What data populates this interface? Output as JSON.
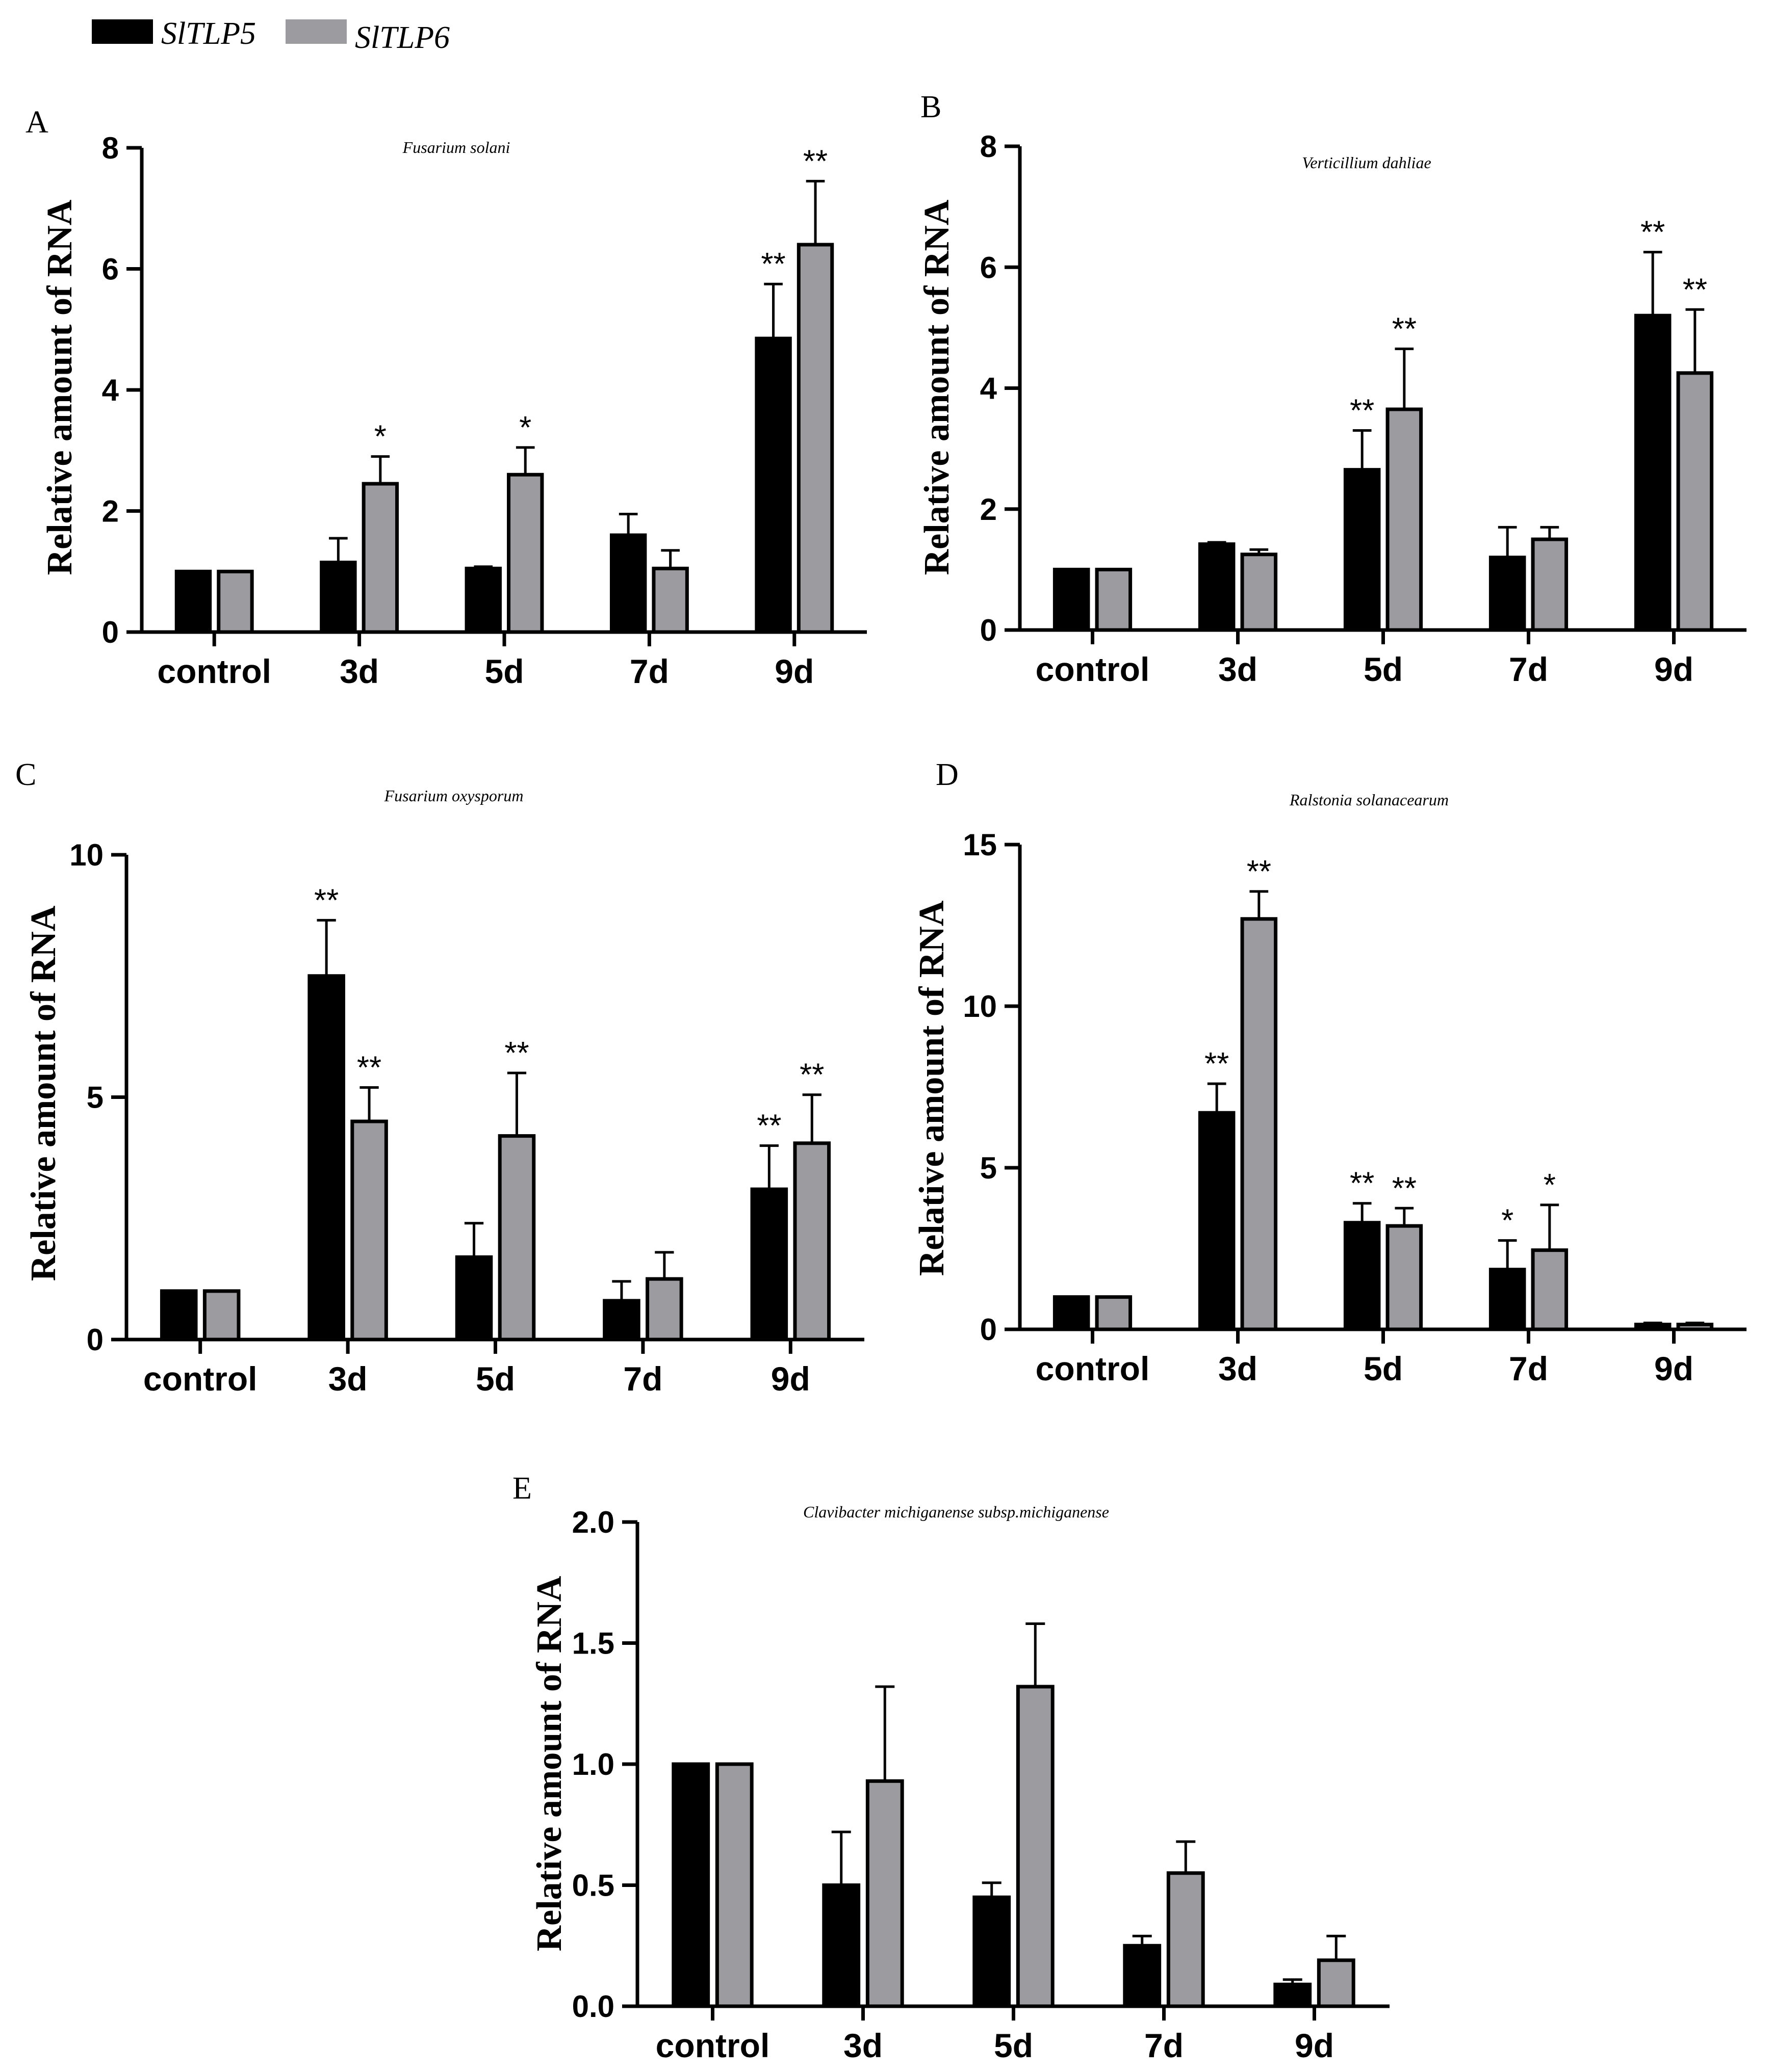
{
  "legend": [
    {
      "name": "SlTLP5",
      "color": "#000000"
    },
    {
      "name": "SlTLP6",
      "color": "#9c9ca0"
    }
  ],
  "chart_data": [
    {
      "panel": "A",
      "type": "bar",
      "title": "Fusarium solani",
      "ylabel": "Relative amount of RNA",
      "ylim": [
        0,
        8
      ],
      "yticks": [
        0,
        2,
        4,
        6,
        8
      ],
      "categories": [
        "control",
        "3d",
        "5d",
        "7d",
        "9d"
      ],
      "series": [
        {
          "name": "SlTLP5",
          "values": [
            1.0,
            1.15,
            1.05,
            1.6,
            4.85
          ],
          "errors": [
            0,
            0.4,
            0.03,
            0.35,
            0.9
          ],
          "sig": [
            "",
            "",
            "",
            "",
            "**"
          ]
        },
        {
          "name": "SlTLP6",
          "values": [
            1.0,
            2.45,
            2.6,
            1.05,
            6.4
          ],
          "errors": [
            0,
            0.45,
            0.45,
            0.3,
            1.05
          ],
          "sig": [
            "",
            "*",
            "*",
            "",
            "**"
          ]
        }
      ]
    },
    {
      "panel": "B",
      "type": "bar",
      "title": "Verticillium  dahliae",
      "ylabel": "Relative amount of RNA",
      "ylim": [
        0,
        8
      ],
      "yticks": [
        0,
        2,
        4,
        6,
        8
      ],
      "categories": [
        "control",
        "3d",
        "5d",
        "7d",
        "9d"
      ],
      "series": [
        {
          "name": "SlTLP5",
          "values": [
            1.0,
            1.42,
            2.65,
            1.2,
            5.2
          ],
          "errors": [
            0,
            0.03,
            0.65,
            0.5,
            1.05
          ],
          "sig": [
            "",
            "",
            "**",
            "",
            "**"
          ]
        },
        {
          "name": "SlTLP6",
          "values": [
            1.0,
            1.25,
            3.65,
            1.5,
            4.25
          ],
          "errors": [
            0,
            0.08,
            1.0,
            0.2,
            1.05
          ],
          "sig": [
            "",
            "",
            "**",
            "",
            "**"
          ]
        }
      ]
    },
    {
      "panel": "C",
      "type": "bar",
      "title": "Fusarium oxysporum",
      "ylabel": "Relative amount of RNA",
      "ylim": [
        0,
        10
      ],
      "yticks": [
        0,
        5,
        10
      ],
      "categories": [
        "control",
        "3d",
        "5d",
        "7d",
        "9d"
      ],
      "series": [
        {
          "name": "SlTLP5",
          "values": [
            1.0,
            7.5,
            1.7,
            0.8,
            3.1
          ],
          "errors": [
            0,
            1.15,
            0.7,
            0.4,
            0.9
          ],
          "sig": [
            "",
            "**",
            "",
            "",
            "**"
          ]
        },
        {
          "name": "SlTLP6",
          "values": [
            1.0,
            4.5,
            4.2,
            1.25,
            4.05
          ],
          "errors": [
            0,
            0.7,
            1.3,
            0.55,
            1.0
          ],
          "sig": [
            "",
            "**",
            "**",
            "",
            "**"
          ]
        }
      ]
    },
    {
      "panel": "D",
      "type": "bar",
      "title": "Ralstonia solanacearum",
      "ylabel": "Relative amount of RNA",
      "ylim": [
        0,
        15
      ],
      "yticks": [
        0,
        5,
        10,
        15
      ],
      "categories": [
        "control",
        "3d",
        "5d",
        "7d",
        "9d"
      ],
      "series": [
        {
          "name": "SlTLP5",
          "values": [
            1.0,
            6.7,
            3.3,
            1.85,
            0.15
          ],
          "errors": [
            0,
            0.9,
            0.6,
            0.9,
            0.05
          ],
          "sig": [
            "",
            "**",
            "**",
            "*",
            ""
          ]
        },
        {
          "name": "SlTLP6",
          "values": [
            1.0,
            12.7,
            3.2,
            2.45,
            0.15
          ],
          "errors": [
            0,
            0.85,
            0.55,
            1.4,
            0.05
          ],
          "sig": [
            "",
            "**",
            "**",
            "*",
            ""
          ]
        }
      ]
    },
    {
      "panel": "E",
      "type": "bar",
      "title": "Clavibacter michiganense subsp.michiganense",
      "ylabel": "Relative amount of RNA",
      "ylim": [
        0,
        2.0
      ],
      "yticks": [
        "0.0",
        "0.5",
        "1.0",
        "1.5",
        "2.0"
      ],
      "categories": [
        "control",
        "3d",
        "5d",
        "7d",
        "9d"
      ],
      "series": [
        {
          "name": "SlTLP5",
          "values": [
            1.0,
            0.5,
            0.45,
            0.25,
            0.09
          ],
          "errors": [
            0,
            0.22,
            0.06,
            0.04,
            0.02
          ],
          "sig": [
            "",
            "",
            "",
            "",
            ""
          ]
        },
        {
          "name": "SlTLP6",
          "values": [
            1.0,
            0.93,
            1.32,
            0.55,
            0.19
          ],
          "errors": [
            0,
            0.39,
            0.26,
            0.13,
            0.1
          ],
          "sig": [
            "",
            "",
            "",
            "",
            ""
          ]
        }
      ]
    }
  ]
}
